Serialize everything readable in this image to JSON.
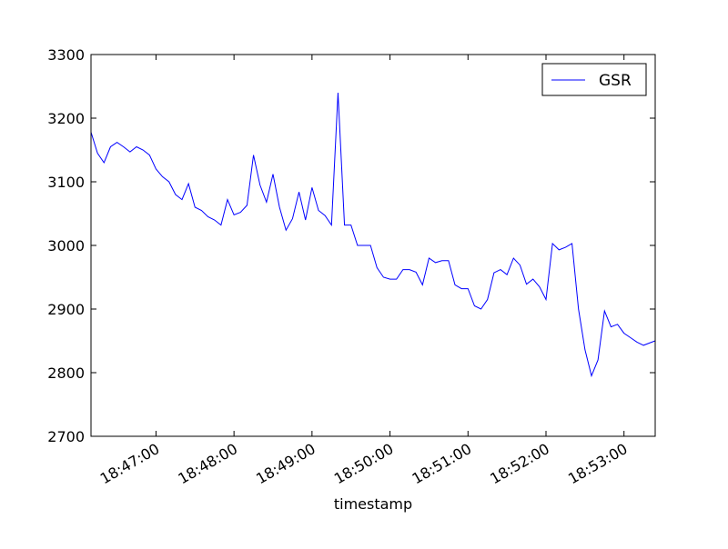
{
  "chart_data": {
    "type": "line",
    "title": "",
    "xlabel": "timestamp",
    "ylabel": "",
    "x_ticks": [
      "18:47:00",
      "18:48:00",
      "18:49:00",
      "18:50:00",
      "18:51:00",
      "18:52:00",
      "18:53:00"
    ],
    "xlim": [
      "18:46:10",
      "18:53:24"
    ],
    "ylim": [
      2700,
      3300
    ],
    "y_ticks": [
      2700,
      2800,
      2900,
      3000,
      3100,
      3200,
      3300
    ],
    "grid": false,
    "legend_position": "top-right",
    "series": [
      {
        "name": "GSR",
        "color": "#0000ff",
        "x": [
          "18:46:10",
          "18:46:15",
          "18:46:20",
          "18:46:25",
          "18:46:30",
          "18:46:35",
          "18:46:40",
          "18:46:45",
          "18:46:50",
          "18:46:55",
          "18:47:00",
          "18:47:05",
          "18:47:10",
          "18:47:15",
          "18:47:20",
          "18:47:25",
          "18:47:30",
          "18:47:35",
          "18:47:40",
          "18:47:45",
          "18:47:50",
          "18:47:55",
          "18:48:00",
          "18:48:05",
          "18:48:10",
          "18:48:15",
          "18:48:20",
          "18:48:25",
          "18:48:30",
          "18:48:35",
          "18:48:40",
          "18:48:45",
          "18:48:50",
          "18:48:55",
          "18:49:00",
          "18:49:05",
          "18:49:10",
          "18:49:15",
          "18:49:20",
          "18:49:25",
          "18:49:30",
          "18:49:35",
          "18:49:40",
          "18:49:45",
          "18:49:50",
          "18:49:55",
          "18:50:00",
          "18:50:05",
          "18:50:10",
          "18:50:15",
          "18:50:20",
          "18:50:25",
          "18:50:30",
          "18:50:35",
          "18:50:40",
          "18:50:45",
          "18:50:50",
          "18:50:55",
          "18:51:00",
          "18:51:05",
          "18:51:10",
          "18:51:15",
          "18:51:20",
          "18:51:25",
          "18:51:30",
          "18:51:35",
          "18:51:40",
          "18:51:45",
          "18:51:50",
          "18:51:55",
          "18:52:00",
          "18:52:05",
          "18:52:10",
          "18:52:15",
          "18:52:20",
          "18:52:25",
          "18:52:30",
          "18:52:35",
          "18:52:40",
          "18:52:45",
          "18:52:50",
          "18:52:55",
          "18:53:00",
          "18:53:05",
          "18:53:10",
          "18:53:15",
          "18:53:20",
          "18:53:24"
        ],
        "values": [
          3178,
          3145,
          3130,
          3155,
          3162,
          3155,
          3147,
          3155,
          3150,
          3142,
          3120,
          3108,
          3100,
          3080,
          3072,
          3097,
          3060,
          3055,
          3045,
          3040,
          3032,
          3072,
          3048,
          3052,
          3063,
          3142,
          3095,
          3068,
          3112,
          3060,
          3024,
          3042,
          3084,
          3040,
          3091,
          3055,
          3047,
          3032,
          3240,
          3032,
          3032,
          3000,
          3000,
          3000,
          2965,
          2950,
          2947,
          2947,
          2962,
          2962,
          2958,
          2938,
          2980,
          2973,
          2976,
          2976,
          2938,
          2932,
          2932,
          2905,
          2900,
          2915,
          2957,
          2962,
          2954,
          2980,
          2969,
          2939,
          2947,
          2935,
          2915,
          3003,
          2993,
          2997,
          3003,
          2900,
          2836,
          2795,
          2820,
          2897,
          2872,
          2876,
          2862,
          2855,
          2848,
          2843,
          2847,
          2850
        ]
      }
    ]
  }
}
